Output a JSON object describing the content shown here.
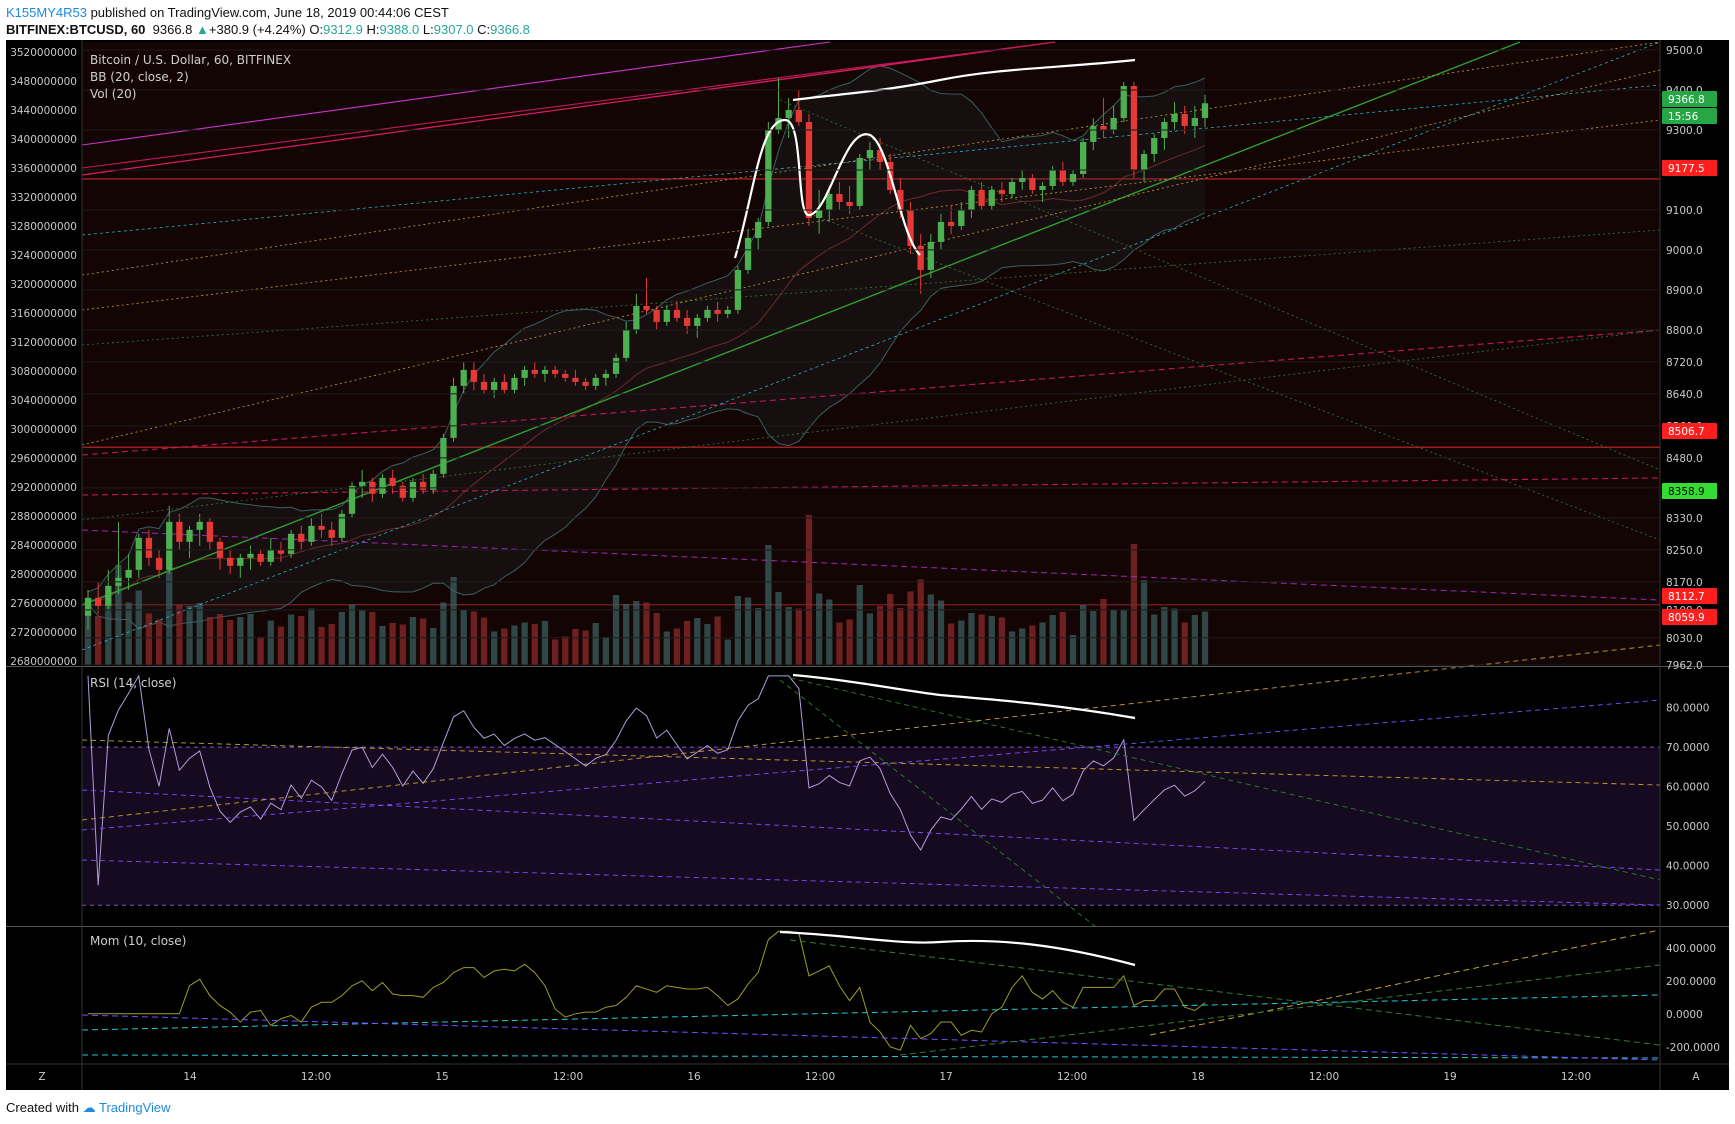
{
  "header": {
    "author": "K155MY4R53",
    "published": "published on TradingView.com, June 18, 2019 00:44:06 CEST",
    "symbol": "BITFINEX:BTCUSD, 60",
    "last": "9366.8",
    "change": "+380.9 (+4.24%)",
    "o_label": "O:",
    "o_value": "9312.9",
    "h_label": "H:",
    "h_value": "9388.0",
    "l_label": "L:",
    "l_value": "9307.0",
    "c_label": "C:",
    "c_value": "9366.8"
  },
  "main_pane": {
    "title": "Bitcoin / U.S. Dollar, 60, BITFINEX",
    "indicator_1": "BB (20, close, 2)",
    "indicator_2": "Vol (20)",
    "left_axis": [
      "3520000000",
      "3480000000",
      "3440000000",
      "3400000000",
      "3360000000",
      "3320000000",
      "3280000000",
      "3240000000",
      "3200000000",
      "3160000000",
      "3120000000",
      "3080000000",
      "3040000000",
      "3000000000",
      "2960000000",
      "2920000000",
      "2880000000",
      "2840000000",
      "2800000000",
      "2760000000",
      "2720000000",
      "2680000000"
    ],
    "right_axis": [
      "9500.0",
      "9400.0",
      "9300.0",
      "9200.0",
      "9100.0",
      "9000.0",
      "8900.0",
      "8800.0",
      "8720.0",
      "8640.0",
      "8560.0",
      "8480.0",
      "8405.0",
      "8330.0",
      "8250.0",
      "8170.0",
      "8100.0",
      "8030.0",
      "7962.0"
    ],
    "price_tags": [
      {
        "label": "9366.8",
        "color": "#26a645"
      },
      {
        "label": "15:56",
        "color": "#26a645"
      },
      {
        "label": "9177.5",
        "color": "#ff1e1e"
      },
      {
        "label": "8506.7",
        "color": "#ff1e1e"
      },
      {
        "label": "8358.9",
        "color": "#33dd33"
      },
      {
        "label": "8112.7",
        "color": "#ff1e1e"
      },
      {
        "label": "8059.9",
        "color": "#ff1e1e"
      }
    ]
  },
  "rsi_pane": {
    "title": "RSI (14, close)",
    "axis": [
      "80.0000",
      "70.0000",
      "60.0000",
      "50.0000",
      "40.0000",
      "30.0000"
    ]
  },
  "mom_pane": {
    "title": "Mom (10, close)",
    "axis": [
      "400.0000",
      "200.0000",
      "0.0000",
      "-200.0000"
    ]
  },
  "time_axis": [
    "14",
    "12:00",
    "15",
    "12:00",
    "16",
    "12:00",
    "17",
    "12:00",
    "18",
    "12:00",
    "19",
    "12:00"
  ],
  "corner_left": "Z",
  "corner_right": "A",
  "footer": {
    "created": "Created with",
    "brand": "TradingView"
  },
  "colors": {
    "background": "#000000",
    "bull": "#4caf50",
    "bear": "#e53935",
    "rsi_band": "#2a1a3a",
    "grid": "#1c1c1c"
  },
  "chart_data": {
    "type": "candlestick",
    "title": "Bitcoin / U.S. Dollar, 60, BITFINEX",
    "x_ticks": [
      "14",
      "12:00",
      "15",
      "12:00",
      "16",
      "12:00",
      "17",
      "12:00",
      "18",
      "12:00",
      "19",
      "12:00"
    ],
    "y_range": [
      7962,
      9520
    ],
    "candles": [
      [
        8085,
        8150,
        8050,
        8130
      ],
      [
        8130,
        8170,
        8090,
        8110
      ],
      [
        8110,
        8200,
        8100,
        8160
      ],
      [
        8160,
        8320,
        8140,
        8180
      ],
      [
        8180,
        8240,
        8150,
        8200
      ],
      [
        8200,
        8290,
        8180,
        8280
      ],
      [
        8280,
        8300,
        8210,
        8230
      ],
      [
        8230,
        8250,
        8180,
        8200
      ],
      [
        8200,
        8360,
        8190,
        8320
      ],
      [
        8320,
        8340,
        8250,
        8270
      ],
      [
        8270,
        8310,
        8230,
        8300
      ],
      [
        8300,
        8340,
        8260,
        8320
      ],
      [
        8320,
        8330,
        8250,
        8270
      ],
      [
        8270,
        8280,
        8200,
        8230
      ],
      [
        8230,
        8250,
        8190,
        8210
      ],
      [
        8210,
        8240,
        8180,
        8230
      ],
      [
        8230,
        8260,
        8200,
        8240
      ],
      [
        8240,
        8250,
        8210,
        8220
      ],
      [
        8220,
        8280,
        8210,
        8250
      ],
      [
        8250,
        8270,
        8220,
        8240
      ],
      [
        8240,
        8300,
        8230,
        8290
      ],
      [
        8290,
        8310,
        8250,
        8270
      ],
      [
        8270,
        8330,
        8260,
        8310
      ],
      [
        8310,
        8340,
        8280,
        8300
      ],
      [
        8300,
        8320,
        8260,
        8280
      ],
      [
        8280,
        8350,
        8270,
        8340
      ],
      [
        8340,
        8420,
        8330,
        8410
      ],
      [
        8410,
        8450,
        8380,
        8420
      ],
      [
        8420,
        8430,
        8370,
        8390
      ],
      [
        8390,
        8440,
        8380,
        8430
      ],
      [
        8430,
        8450,
        8390,
        8410
      ],
      [
        8410,
        8420,
        8370,
        8380
      ],
      [
        8380,
        8430,
        8370,
        8420
      ],
      [
        8420,
        8440,
        8390,
        8400
      ],
      [
        8400,
        8450,
        8390,
        8440
      ],
      [
        8440,
        8540,
        8430,
        8530
      ],
      [
        8530,
        8680,
        8520,
        8660
      ],
      [
        8660,
        8720,
        8640,
        8700
      ],
      [
        8700,
        8720,
        8650,
        8670
      ],
      [
        8670,
        8690,
        8640,
        8650
      ],
      [
        8650,
        8680,
        8630,
        8670
      ],
      [
        8670,
        8690,
        8640,
        8650
      ],
      [
        8650,
        8690,
        8640,
        8680
      ],
      [
        8680,
        8710,
        8660,
        8700
      ],
      [
        8700,
        8720,
        8680,
        8690
      ],
      [
        8690,
        8710,
        8670,
        8700
      ],
      [
        8700,
        8710,
        8680,
        8690
      ],
      [
        8690,
        8700,
        8670,
        8680
      ],
      [
        8680,
        8700,
        8660,
        8670
      ],
      [
        8670,
        8680,
        8650,
        8660
      ],
      [
        8660,
        8690,
        8650,
        8680
      ],
      [
        8680,
        8700,
        8660,
        8690
      ],
      [
        8690,
        8740,
        8680,
        8730
      ],
      [
        8730,
        8820,
        8720,
        8800
      ],
      [
        8800,
        8890,
        8790,
        8860
      ],
      [
        8860,
        8930,
        8840,
        8850
      ],
      [
        8850,
        8860,
        8800,
        8820
      ],
      [
        8820,
        8860,
        8810,
        8850
      ],
      [
        8850,
        8870,
        8820,
        8830
      ],
      [
        8830,
        8850,
        8790,
        8810
      ],
      [
        8810,
        8840,
        8780,
        8830
      ],
      [
        8830,
        8860,
        8820,
        8850
      ],
      [
        8850,
        8870,
        8820,
        8840
      ],
      [
        8840,
        8860,
        8830,
        8850
      ],
      [
        8850,
        8960,
        8840,
        8950
      ],
      [
        8950,
        9050,
        8940,
        9030
      ],
      [
        9030,
        9080,
        9000,
        9070
      ],
      [
        9070,
        9320,
        9060,
        9300
      ],
      [
        9300,
        9430,
        9290,
        9330
      ],
      [
        9330,
        9380,
        9280,
        9350
      ],
      [
        9350,
        9400,
        9310,
        9320
      ],
      [
        9320,
        9340,
        9060,
        9080
      ],
      [
        9080,
        9150,
        9040,
        9100
      ],
      [
        9100,
        9160,
        9070,
        9140
      ],
      [
        9140,
        9170,
        9100,
        9120
      ],
      [
        9120,
        9160,
        9090,
        9110
      ],
      [
        9110,
        9240,
        9100,
        9230
      ],
      [
        9230,
        9270,
        9200,
        9250
      ],
      [
        9250,
        9280,
        9200,
        9220
      ],
      [
        9220,
        9240,
        9140,
        9150
      ],
      [
        9150,
        9180,
        9080,
        9100
      ],
      [
        9100,
        9120,
        8990,
        9010
      ],
      [
        9010,
        9040,
        8890,
        8950
      ],
      [
        8950,
        9040,
        8930,
        9020
      ],
      [
        9020,
        9090,
        9000,
        9070
      ],
      [
        9070,
        9110,
        9040,
        9060
      ],
      [
        9060,
        9120,
        9050,
        9100
      ],
      [
        9100,
        9160,
        9080,
        9150
      ],
      [
        9150,
        9170,
        9100,
        9110
      ],
      [
        9110,
        9160,
        9100,
        9150
      ],
      [
        9150,
        9170,
        9120,
        9140
      ],
      [
        9140,
        9180,
        9130,
        9170
      ],
      [
        9170,
        9200,
        9150,
        9180
      ],
      [
        9180,
        9190,
        9140,
        9150
      ],
      [
        9150,
        9170,
        9120,
        9160
      ],
      [
        9160,
        9210,
        9150,
        9200
      ],
      [
        9200,
        9220,
        9160,
        9170
      ],
      [
        9170,
        9200,
        9160,
        9190
      ],
      [
        9190,
        9280,
        9180,
        9270
      ],
      [
        9270,
        9330,
        9250,
        9310
      ],
      [
        9310,
        9380,
        9280,
        9300
      ],
      [
        9300,
        9360,
        9290,
        9330
      ],
      [
        9330,
        9420,
        9320,
        9410
      ],
      [
        9410,
        9420,
        9180,
        9200
      ],
      [
        9200,
        9250,
        9170,
        9240
      ],
      [
        9240,
        9290,
        9220,
        9280
      ],
      [
        9280,
        9330,
        9250,
        9320
      ],
      [
        9320,
        9370,
        9300,
        9340
      ],
      [
        9340,
        9360,
        9290,
        9310
      ],
      [
        9310,
        9360,
        9280,
        9330
      ],
      [
        9330,
        9388,
        9307,
        9366.8
      ]
    ]
  }
}
